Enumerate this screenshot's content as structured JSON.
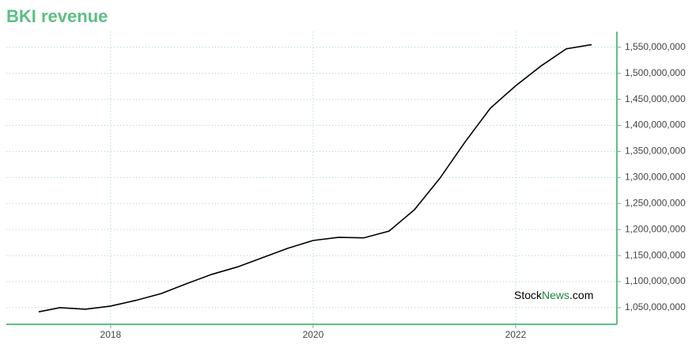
{
  "chart_data": {
    "type": "line",
    "title": "BKI revenue",
    "x": [
      2017.29,
      2017.5,
      2017.75,
      2018.0,
      2018.25,
      2018.5,
      2018.75,
      2019.0,
      2019.25,
      2019.5,
      2019.75,
      2020.0,
      2020.25,
      2020.5,
      2020.75,
      2021.0,
      2021.25,
      2021.5,
      2021.75,
      2022.0,
      2022.25,
      2022.5,
      2022.75
    ],
    "series": [
      {
        "name": "BKI revenue",
        "color": "#000000",
        "values": [
          1042000000,
          1050000000,
          1047000000,
          1053000000,
          1064000000,
          1077000000,
          1096000000,
          1114000000,
          1128000000,
          1146000000,
          1164000000,
          1179000000,
          1185000000,
          1184000000,
          1197000000,
          1238000000,
          1298000000,
          1368000000,
          1433000000,
          1476000000,
          1514000000,
          1547000000,
          1555000000
        ]
      }
    ],
    "xlim": [
      2016.97,
      2023.0
    ],
    "xticks": [
      2018,
      2020,
      2022
    ],
    "ylim": [
      1018000000,
      1580000000
    ],
    "yticks": [
      {
        "value": 1050000000,
        "label": "1,050,000,000"
      },
      {
        "value": 1100000000,
        "label": "1,100,000,000"
      },
      {
        "value": 1150000000,
        "label": "1,150,000,000"
      },
      {
        "value": 1200000000,
        "label": "1,200,000,000"
      },
      {
        "value": 1250000000,
        "label": "1,250,000,000"
      },
      {
        "value": 1300000000,
        "label": "1,300,000,000"
      },
      {
        "value": 1350000000,
        "label": "1,350,000,000"
      },
      {
        "value": 1400000000,
        "label": "1,400,000,000"
      },
      {
        "value": 1450000000,
        "label": "1,450,000,000"
      },
      {
        "value": 1500000000,
        "label": "1,500,000,000"
      },
      {
        "value": 1550000000,
        "label": "1,550,000,000"
      }
    ],
    "grid": true,
    "axis_color": "#5cbf84",
    "watermark": [
      "Stock",
      "News",
      ".com"
    ]
  }
}
